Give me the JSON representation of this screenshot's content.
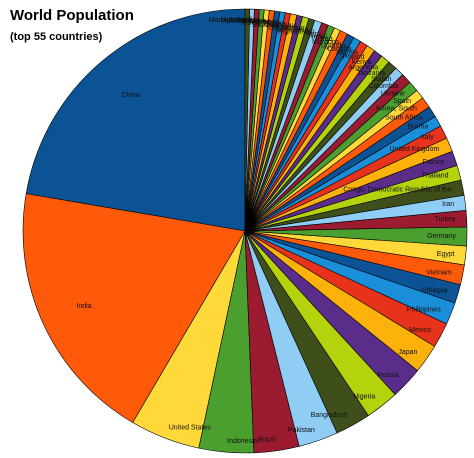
{
  "chart_data": {
    "type": "pie",
    "title": "World Population",
    "subtitle": "(top 55 countries)",
    "categories": [
      "China",
      "India",
      "United States",
      "Indonesia",
      "Brazil",
      "Pakistan",
      "Bangladesh",
      "Nigeria",
      "Russia",
      "Japan",
      "Mexico",
      "Philippines",
      "Ethiopia",
      "Vietnam",
      "Egypt",
      "Germany",
      "Turkey",
      "Iran",
      "Congo, Democratic Republic of the",
      "Thailand",
      "France",
      "United Kingdom",
      "Italy",
      "Burma",
      "South Africa",
      "Korea, South",
      "Spain",
      "Ukraine",
      "Colombia",
      "Sudan",
      "Tanzania",
      "Argentina",
      "Kenya",
      "Poland",
      "Algeria",
      "Canada",
      "Uganda",
      "Morocco",
      "Iraq",
      "Nepal",
      "Peru",
      "Afghanistan",
      "Venezuela",
      "Uzbekistan",
      "Malaysia",
      "Saudi Arabia",
      "Ghana",
      "Korea, North",
      "Yemen",
      "Taiwan",
      "Romania",
      "Mozambique",
      "Australia",
      "Syria",
      "Madagascar"
    ],
    "values": [
      1330,
      1148,
      304,
      237,
      196,
      172,
      153,
      146,
      140,
      127,
      109,
      96,
      82,
      86,
      81,
      82,
      71,
      65,
      66,
      65,
      64,
      61,
      58,
      47,
      48,
      48,
      40,
      46,
      45,
      40,
      40,
      40,
      38,
      38,
      34,
      33,
      31,
      34,
      28,
      29,
      29,
      32,
      26,
      28,
      25,
      28,
      23,
      23,
      23,
      23,
      22,
      21,
      21,
      20,
      20
    ],
    "colors": [
      "#0b5394",
      "#ff5a0a",
      "#ffd93a",
      "#4a9f2e",
      "#9b1b30",
      "#8fcdf5",
      "#3f4f1b",
      "#b5d30c",
      "#5b2d8a",
      "#fcb20a",
      "#e8331c",
      "#1a8ed8"
    ]
  }
}
